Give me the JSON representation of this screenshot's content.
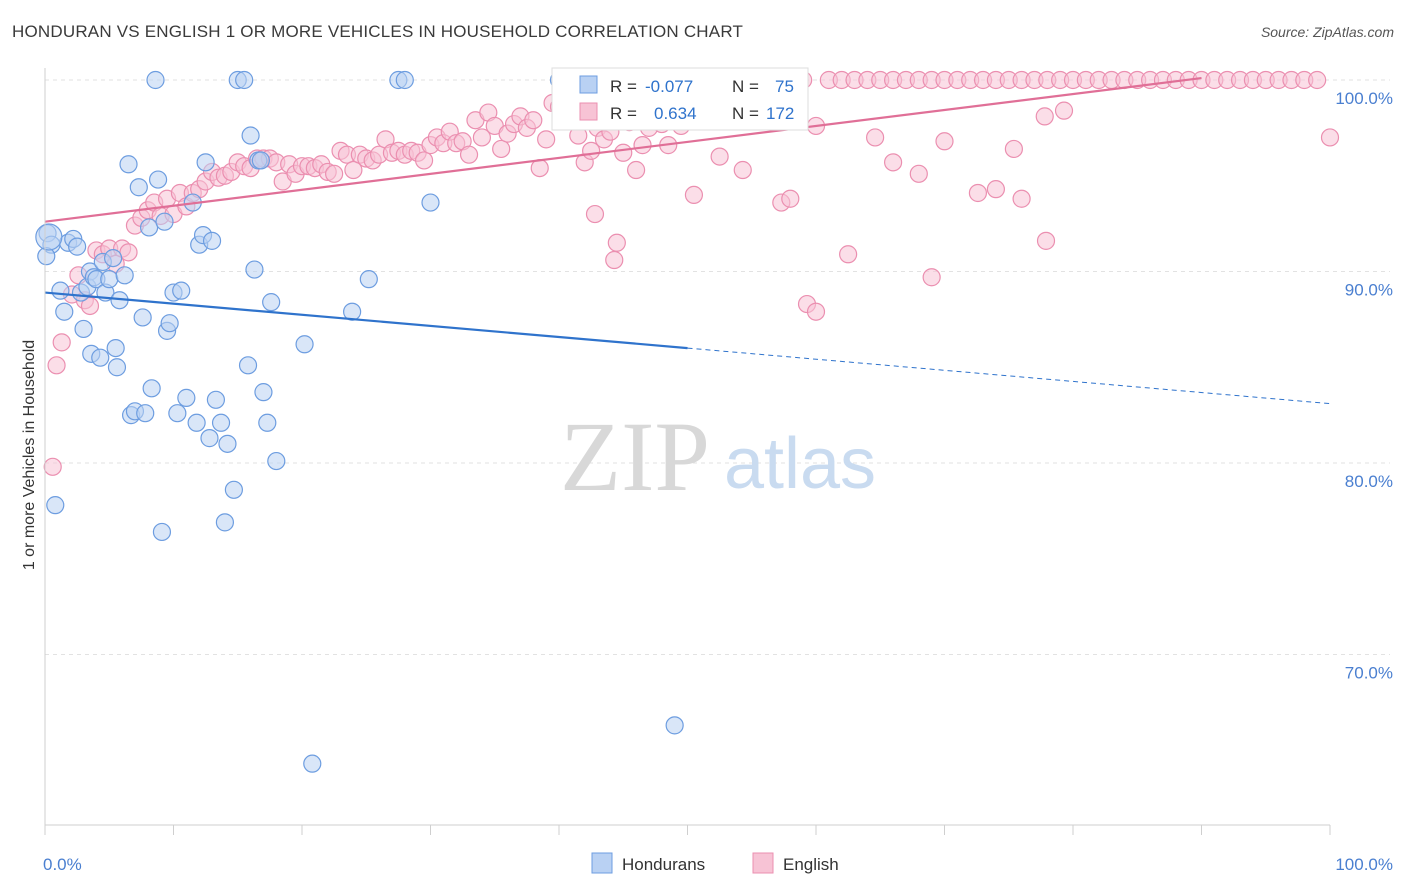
{
  "title": "HONDURAN VS ENGLISH 1 OR MORE VEHICLES IN HOUSEHOLD CORRELATION CHART",
  "source": "Source: ZipAtlas.com",
  "watermark": {
    "zip": "ZIP",
    "atlas": "atlas"
  },
  "chart_data": {
    "type": "scatter",
    "ylabel": "1 or more Vehicles in Household",
    "xlabel": "",
    "x_tick_labels": [
      "0.0%",
      "100.0%"
    ],
    "y_tick_labels": [
      "100.0%",
      "90.0%",
      "80.0%",
      "70.0%"
    ],
    "y_ticks": [
      100,
      90,
      80,
      70
    ],
    "xlim": [
      0,
      100
    ],
    "ylim": [
      60.8,
      101.0
    ],
    "grid": true,
    "legend_position": "bottom",
    "stats_box": {
      "rows": [
        {
          "r_label": "R =",
          "r_value": "-0.077",
          "n_label": "N =",
          "n_value": "75"
        },
        {
          "r_label": "R =",
          "r_value": "0.634",
          "n_label": "N =",
          "n_value": "172"
        }
      ]
    },
    "series": [
      {
        "name": "Hondurans",
        "color": "#6d9de0",
        "fill": "#b9d1f3",
        "line_color": "#2f73cc",
        "trend": {
          "x": [
            0,
            50,
            100
          ],
          "y": [
            88.9,
            86.0,
            83.1
          ],
          "solid_until": 50
        },
        "points": [
          [
            0.2,
            92.0
          ],
          [
            0.5,
            91.4
          ],
          [
            0.1,
            90.8
          ],
          [
            0.8,
            77.8
          ],
          [
            1.2,
            89.0
          ],
          [
            1.5,
            87.9
          ],
          [
            1.8,
            91.5
          ],
          [
            2.2,
            91.7
          ],
          [
            2.5,
            91.3
          ],
          [
            2.8,
            88.9
          ],
          [
            3.0,
            87.0
          ],
          [
            3.3,
            89.2
          ],
          [
            3.5,
            90.0
          ],
          [
            3.6,
            85.7
          ],
          [
            3.8,
            89.7
          ],
          [
            4.0,
            89.6
          ],
          [
            4.3,
            85.5
          ],
          [
            4.5,
            90.5
          ],
          [
            4.7,
            88.9
          ],
          [
            5.0,
            89.6
          ],
          [
            5.3,
            90.7
          ],
          [
            5.5,
            86.0
          ],
          [
            5.6,
            85.0
          ],
          [
            5.8,
            88.5
          ],
          [
            6.2,
            89.8
          ],
          [
            6.5,
            95.6
          ],
          [
            6.7,
            82.5
          ],
          [
            7.0,
            82.7
          ],
          [
            7.3,
            94.4
          ],
          [
            7.6,
            87.6
          ],
          [
            7.8,
            82.6
          ],
          [
            8.1,
            92.3
          ],
          [
            8.3,
            83.9
          ],
          [
            8.6,
            100
          ],
          [
            8.8,
            94.8
          ],
          [
            9.1,
            76.4
          ],
          [
            9.3,
            92.6
          ],
          [
            9.5,
            86.9
          ],
          [
            9.7,
            87.3
          ],
          [
            10.0,
            88.9
          ],
          [
            10.3,
            82.6
          ],
          [
            10.6,
            89.0
          ],
          [
            11.0,
            83.4
          ],
          [
            11.5,
            93.6
          ],
          [
            11.8,
            82.1
          ],
          [
            12.0,
            91.4
          ],
          [
            12.3,
            91.9
          ],
          [
            12.5,
            95.7
          ],
          [
            12.8,
            81.3
          ],
          [
            13.0,
            91.6
          ],
          [
            13.3,
            83.3
          ],
          [
            13.7,
            82.1
          ],
          [
            14.0,
            76.9
          ],
          [
            14.2,
            81.0
          ],
          [
            14.7,
            78.6
          ],
          [
            15.0,
            100
          ],
          [
            15.5,
            100
          ],
          [
            15.8,
            85.1
          ],
          [
            16.0,
            97.1
          ],
          [
            16.3,
            90.1
          ],
          [
            16.6,
            95.8
          ],
          [
            17.0,
            83.7
          ],
          [
            17.3,
            82.1
          ],
          [
            17.6,
            88.4
          ],
          [
            18.0,
            80.1
          ],
          [
            20.2,
            86.2
          ],
          [
            20.8,
            64.3
          ],
          [
            23.9,
            87.9
          ],
          [
            25.2,
            89.6
          ],
          [
            27.5,
            100
          ],
          [
            28.0,
            100
          ],
          [
            30.0,
            93.6
          ],
          [
            40.0,
            100
          ],
          [
            49.0,
            66.3
          ],
          [
            16.8,
            95.8
          ]
        ]
      },
      {
        "name": "English",
        "color": "#eb8fb0",
        "fill": "#f7c3d5",
        "line_color": "#e06f97",
        "trend": {
          "x": [
            0,
            90
          ],
          "y": [
            92.6,
            100.1
          ],
          "solid_until": 90
        },
        "points": [
          [
            0.6,
            79.8
          ],
          [
            0.9,
            85.1
          ],
          [
            1.3,
            86.3
          ],
          [
            2.1,
            88.8
          ],
          [
            2.6,
            89.8
          ],
          [
            3.1,
            88.5
          ],
          [
            3.5,
            88.2
          ],
          [
            4.0,
            91.1
          ],
          [
            4.5,
            90.9
          ],
          [
            5.0,
            91.2
          ],
          [
            5.5,
            90.4
          ],
          [
            6.0,
            91.2
          ],
          [
            6.5,
            91.0
          ],
          [
            7.0,
            92.4
          ],
          [
            7.5,
            92.8
          ],
          [
            8.0,
            93.2
          ],
          [
            8.5,
            93.6
          ],
          [
            9.0,
            92.9
          ],
          [
            9.5,
            93.8
          ],
          [
            10.0,
            93.0
          ],
          [
            10.5,
            94.1
          ],
          [
            11.0,
            93.4
          ],
          [
            11.5,
            94.1
          ],
          [
            12.0,
            94.3
          ],
          [
            12.5,
            94.7
          ],
          [
            13.0,
            95.2
          ],
          [
            13.5,
            94.9
          ],
          [
            14.0,
            95.0
          ],
          [
            14.5,
            95.2
          ],
          [
            15.0,
            95.7
          ],
          [
            15.5,
            95.5
          ],
          [
            16.0,
            95.4
          ],
          [
            16.5,
            95.9
          ],
          [
            17.0,
            95.9
          ],
          [
            17.5,
            95.9
          ],
          [
            18.0,
            95.7
          ],
          [
            18.5,
            94.7
          ],
          [
            19.0,
            95.6
          ],
          [
            19.5,
            95.1
          ],
          [
            20.0,
            95.5
          ],
          [
            20.5,
            95.5
          ],
          [
            21.0,
            95.4
          ],
          [
            21.5,
            95.6
          ],
          [
            22.0,
            95.2
          ],
          [
            22.5,
            95.1
          ],
          [
            23.0,
            96.3
          ],
          [
            23.5,
            96.1
          ],
          [
            24.0,
            95.3
          ],
          [
            24.5,
            96.1
          ],
          [
            25.0,
            95.9
          ],
          [
            25.5,
            95.8
          ],
          [
            26.0,
            96.1
          ],
          [
            26.5,
            96.9
          ],
          [
            27.0,
            96.2
          ],
          [
            27.5,
            96.3
          ],
          [
            28.0,
            96.1
          ],
          [
            28.5,
            96.3
          ],
          [
            29.0,
            96.2
          ],
          [
            29.5,
            95.8
          ],
          [
            30.0,
            96.6
          ],
          [
            30.5,
            97.0
          ],
          [
            31.0,
            96.7
          ],
          [
            31.5,
            97.3
          ],
          [
            32.0,
            96.7
          ],
          [
            32.5,
            96.8
          ],
          [
            33.0,
            96.1
          ],
          [
            33.5,
            97.9
          ],
          [
            34.0,
            97.0
          ],
          [
            34.5,
            98.3
          ],
          [
            35.0,
            97.6
          ],
          [
            35.5,
            96.4
          ],
          [
            36.0,
            97.2
          ],
          [
            36.5,
            97.7
          ],
          [
            37.0,
            98.1
          ],
          [
            37.5,
            97.5
          ],
          [
            38.0,
            97.9
          ],
          [
            38.5,
            95.4
          ],
          [
            39.0,
            96.9
          ],
          [
            39.5,
            98.8
          ],
          [
            40.0,
            98.6
          ],
          [
            40.5,
            99.0
          ],
          [
            41.0,
            98.2
          ],
          [
            41.5,
            97.1
          ],
          [
            42.0,
            95.7
          ],
          [
            42.5,
            96.3
          ],
          [
            43.0,
            97.5
          ],
          [
            43.5,
            96.9
          ],
          [
            44.0,
            97.3
          ],
          [
            44.5,
            98.7
          ],
          [
            45.0,
            96.2
          ],
          [
            45.5,
            97.8
          ],
          [
            46.0,
            95.3
          ],
          [
            46.5,
            96.6
          ],
          [
            47.0,
            97.5
          ],
          [
            47.5,
            98.8
          ],
          [
            48.0,
            97.7
          ],
          [
            48.5,
            96.6
          ],
          [
            49.0,
            98.1
          ],
          [
            49.5,
            97.6
          ],
          [
            50.0,
            99.8
          ],
          [
            50.5,
            100
          ],
          [
            51.0,
            98.6
          ],
          [
            51.5,
            100
          ],
          [
            52.0,
            99.8
          ],
          [
            52.5,
            96.0
          ],
          [
            53.0,
            99.6
          ],
          [
            53.5,
            100
          ],
          [
            54.0,
            98.8
          ],
          [
            54.5,
            100
          ],
          [
            55.0,
            99.4
          ],
          [
            55.5,
            98.5
          ],
          [
            56.0,
            100
          ],
          [
            57.0,
            99.4
          ],
          [
            58.0,
            100
          ],
          [
            59.0,
            100
          ],
          [
            60.0,
            97.6
          ],
          [
            61.0,
            100
          ],
          [
            62.0,
            100
          ],
          [
            63.0,
            100
          ],
          [
            64.0,
            100
          ],
          [
            65.0,
            100
          ],
          [
            66.0,
            100
          ],
          [
            67.0,
            100
          ],
          [
            68.0,
            100
          ],
          [
            69.0,
            100
          ],
          [
            70.0,
            100
          ],
          [
            71.0,
            100
          ],
          [
            72.0,
            100
          ],
          [
            73.0,
            100
          ],
          [
            74.0,
            100
          ],
          [
            75.0,
            100
          ],
          [
            76.0,
            100
          ],
          [
            77.0,
            100
          ],
          [
            78.0,
            100
          ],
          [
            79.0,
            100
          ],
          [
            80.0,
            100
          ],
          [
            81.0,
            100
          ],
          [
            82.0,
            100
          ],
          [
            83.0,
            100
          ],
          [
            84.0,
            100
          ],
          [
            85.0,
            100
          ],
          [
            86.0,
            100
          ],
          [
            87.0,
            100
          ],
          [
            88.0,
            100
          ],
          [
            89.0,
            100
          ],
          [
            90.0,
            100
          ],
          [
            91.0,
            100
          ],
          [
            92.0,
            100
          ],
          [
            93.0,
            100
          ],
          [
            94.0,
            100
          ],
          [
            95.0,
            100
          ],
          [
            96.0,
            100
          ],
          [
            97.0,
            100
          ],
          [
            98.0,
            100
          ],
          [
            99.0,
            100
          ],
          [
            100.0,
            97.0
          ],
          [
            42.8,
            93.0
          ],
          [
            44.5,
            91.5
          ],
          [
            44.3,
            90.6
          ],
          [
            59.3,
            88.3
          ],
          [
            60.0,
            87.9
          ],
          [
            62.5,
            90.9
          ],
          [
            57.3,
            93.6
          ],
          [
            50.5,
            94.0
          ],
          [
            66.0,
            95.7
          ],
          [
            68.0,
            95.1
          ],
          [
            69.0,
            89.7
          ],
          [
            72.6,
            94.1
          ],
          [
            74.0,
            94.3
          ],
          [
            75.4,
            96.4
          ],
          [
            76.0,
            93.8
          ],
          [
            77.8,
            98.1
          ],
          [
            79.3,
            98.4
          ],
          [
            77.9,
            91.6
          ],
          [
            58.0,
            93.8
          ],
          [
            70.0,
            96.8
          ],
          [
            64.6,
            97.0
          ],
          [
            54.3,
            95.3
          ]
        ]
      }
    ]
  }
}
